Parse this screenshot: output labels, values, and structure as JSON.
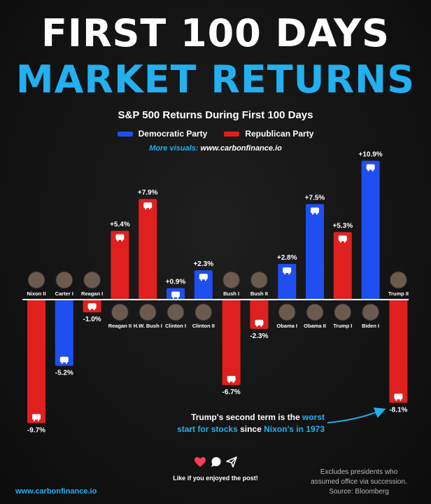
{
  "header": {
    "title_line1": "FIRST 100 DAYS",
    "title_line2": "MARKET RETURNS",
    "subtitle": "S&P 500 Returns During First 100 Days",
    "more_visuals_label": "More visuals:",
    "more_visuals_url": "www.carbonfinance.io"
  },
  "legend": [
    {
      "label": "Democratic Party",
      "color": "#1f4ff0"
    },
    {
      "label": "Republican Party",
      "color": "#e0201f"
    }
  ],
  "colors": {
    "democratic": "#1f4ff0",
    "republican": "#e0201f",
    "accent": "#22b0f0",
    "background": "#141414"
  },
  "chart_data": {
    "type": "bar",
    "title": "S&P 500 Returns During First 100 Days",
    "categories": [
      "Nixon II",
      "Carter I",
      "Reagan I",
      "Reagan II",
      "H.W. Bush I",
      "Clinton I",
      "Clinton II",
      "Bush I",
      "Bush II",
      "Obama I",
      "Obama II",
      "Trump I",
      "Biden I",
      "Trump II"
    ],
    "values": [
      -9.7,
      -5.2,
      -1.0,
      5.4,
      7.9,
      0.9,
      2.3,
      -6.7,
      -2.3,
      2.8,
      7.5,
      5.3,
      10.9,
      -8.1
    ],
    "value_labels": [
      "-9.7%",
      "-5.2%",
      "-1.0%",
      "+5.4%",
      "+7.9%",
      "+0.9%",
      "+2.3%",
      "-6.7%",
      "-2.3%",
      "+2.8%",
      "+7.5%",
      "+5.3%",
      "+10.9%",
      "-8.1%"
    ],
    "party": [
      "Republican",
      "Democratic",
      "Republican",
      "Republican",
      "Republican",
      "Democratic",
      "Democratic",
      "Republican",
      "Republican",
      "Democratic",
      "Democratic",
      "Republican",
      "Democratic",
      "Republican"
    ],
    "series": [
      {
        "name": "Democratic Party",
        "color": "#1f4ff0"
      },
      {
        "name": "Republican Party",
        "color": "#e0201f"
      }
    ],
    "xlabel": "",
    "ylabel": "",
    "ylim": [
      -9.7,
      10.9
    ],
    "grid": false,
    "legend_position": "top-center"
  },
  "annotation": {
    "part1": "Trump's second term is the ",
    "worst": "worst",
    "part2": "start for stocks",
    "part3": " since ",
    "nixon": "Nixon's in 1973"
  },
  "footer": {
    "like_text": "Like if you enjoyed the post!",
    "like_icons": [
      "heart-icon",
      "comment-icon",
      "share-icon"
    ],
    "site": "www.carbonfinance.io",
    "note_line1": "Excludes presidents who",
    "note_line2": "assumed office via succession.",
    "note_line3": "Source: Bloomberg"
  }
}
